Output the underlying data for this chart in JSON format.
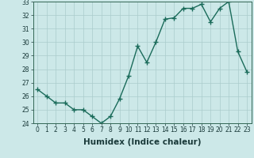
{
  "xlabel": "Humidex (Indice chaleur)",
  "x": [
    0,
    1,
    2,
    3,
    4,
    5,
    6,
    7,
    8,
    9,
    10,
    11,
    12,
    13,
    14,
    15,
    16,
    17,
    18,
    19,
    20,
    21,
    22,
    23
  ],
  "y": [
    26.5,
    26.0,
    25.5,
    25.5,
    25.0,
    25.0,
    24.5,
    24.0,
    24.5,
    25.8,
    27.5,
    29.7,
    28.5,
    30.0,
    31.7,
    31.8,
    32.5,
    32.5,
    32.8,
    31.5,
    32.5,
    33.0,
    29.3,
    27.8
  ],
  "line_color": "#1a6b5a",
  "marker": "+",
  "markersize": 4,
  "linewidth": 1.0,
  "markeredgewidth": 1.0,
  "ylim": [
    24,
    33
  ],
  "xlim": [
    -0.5,
    23.5
  ],
  "yticks": [
    24,
    25,
    26,
    27,
    28,
    29,
    30,
    31,
    32,
    33
  ],
  "xticks": [
    0,
    1,
    2,
    3,
    4,
    5,
    6,
    7,
    8,
    9,
    10,
    11,
    12,
    13,
    14,
    15,
    16,
    17,
    18,
    19,
    20,
    21,
    22,
    23
  ],
  "bg_color": "#cce8e8",
  "grid_color": "#aacccc",
  "axes_face_color": "#cce8e8",
  "tick_fontsize": 5.5,
  "xlabel_fontsize": 7.5,
  "spine_color": "#336655"
}
